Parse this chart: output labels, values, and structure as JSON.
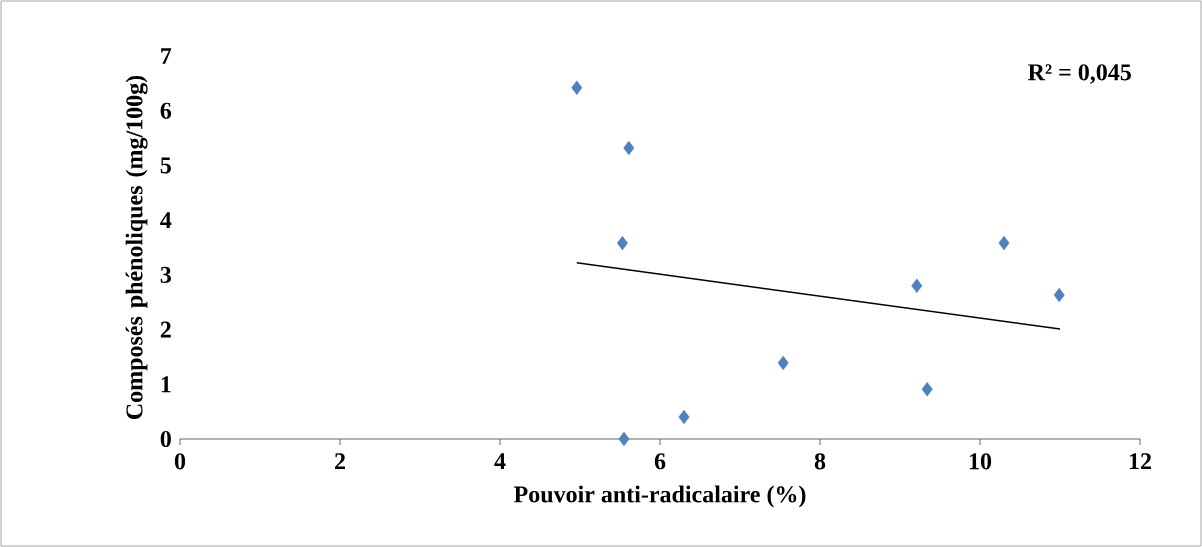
{
  "chart_data": {
    "type": "scatter",
    "xlabel": "Pouvoir anti-radicalaire (%)",
    "ylabel": "Composés phénoliques (mg/100g)",
    "xlim": [
      0,
      12
    ],
    "ylim": [
      0,
      7
    ],
    "xticks": [
      0,
      2,
      4,
      6,
      8,
      10,
      12
    ],
    "yticks": [
      0,
      1,
      2,
      3,
      4,
      5,
      6,
      7
    ],
    "marker": "diamond",
    "annotations": [
      "R² = 0,045"
    ],
    "series": [
      {
        "color": "#4f81bd",
        "x": [
          4.96,
          5.61,
          5.53,
          5.55,
          6.3,
          7.54,
          9.21,
          9.34,
          10.3,
          10.99
        ],
        "values": [
          6.42,
          5.32,
          3.58,
          0,
          0.4,
          1.39,
          2.8,
          0.91,
          3.58,
          2.63
        ]
      },
      {
        "type": "line",
        "color": "#000000",
        "marker": "none",
        "x": [
          4.96,
          11.0
        ],
        "values": [
          3.22,
          2.01
        ]
      }
    ]
  }
}
